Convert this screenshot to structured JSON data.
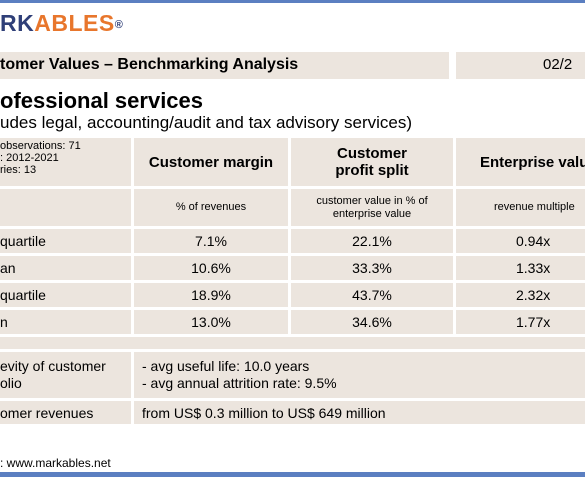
{
  "logo": {
    "part1": "RK",
    "part2": "ABLES",
    "reg": "®"
  },
  "title": "tomer Values – Benchmarking Analysis",
  "date": "02/2",
  "heading": "ofessional services",
  "subheading": "udes legal, accounting/audit and tax advisory services)",
  "meta": [
    "observations: 71",
    ": 2012-2021",
    "ries: 13"
  ],
  "columns": [
    {
      "title": "Customer margin",
      "unit": "% of revenues"
    },
    {
      "title_line1": "Customer",
      "title_line2": "profit split",
      "unit_line1": "customer value in % of",
      "unit_line2": "enterprise value"
    },
    {
      "title": "Enterprise valu",
      "unit": "revenue multiple"
    }
  ],
  "rows": [
    {
      "label": "quartile",
      "values": [
        "7.1%",
        "22.1%",
        "0.94x"
      ]
    },
    {
      "label": "an",
      "values": [
        "10.6%",
        "33.3%",
        "1.33x"
      ]
    },
    {
      "label": "quartile",
      "values": [
        "18.9%",
        "43.7%",
        "2.32x"
      ]
    },
    {
      "label": "n",
      "values": [
        "13.0%",
        "34.6%",
        "1.77x"
      ]
    }
  ],
  "longevity": {
    "label_line1": "evity of customer",
    "label_line2": "olio",
    "line1": "- avg useful life: 10.0 years",
    "line2": "- avg annual attrition rate: 9.5%"
  },
  "revenues": {
    "label": "omer revenues",
    "value": "from US$ 0.3 million to US$ 649 million"
  },
  "source": ": www.markables.net"
}
